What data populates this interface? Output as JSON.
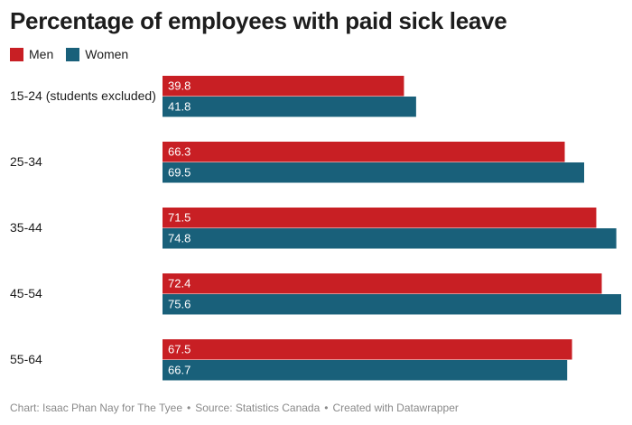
{
  "title": "Percentage of employees with paid sick leave",
  "colors": {
    "men": "#c81f24",
    "women": "#19607a"
  },
  "chart_data": {
    "type": "bar",
    "orientation": "horizontal",
    "title": "Percentage of employees with paid sick leave",
    "categories": [
      "15-24 (students excluded)",
      "25-34",
      "35-44",
      "45-54",
      "55-64"
    ],
    "series": [
      {
        "name": "Men",
        "values": [
          39.8,
          66.3,
          71.5,
          72.4,
          67.5
        ]
      },
      {
        "name": "Women",
        "values": [
          41.8,
          69.5,
          74.8,
          75.6,
          66.7
        ]
      }
    ],
    "xlim": [
      0,
      75.6
    ],
    "legend": "top-left",
    "grid": false
  },
  "footer": {
    "chart_credit": "Chart: Isaac Phan Nay for The Tyee",
    "source": "Source: Statistics Canada",
    "tool": "Created with Datawrapper",
    "separator": "•"
  }
}
